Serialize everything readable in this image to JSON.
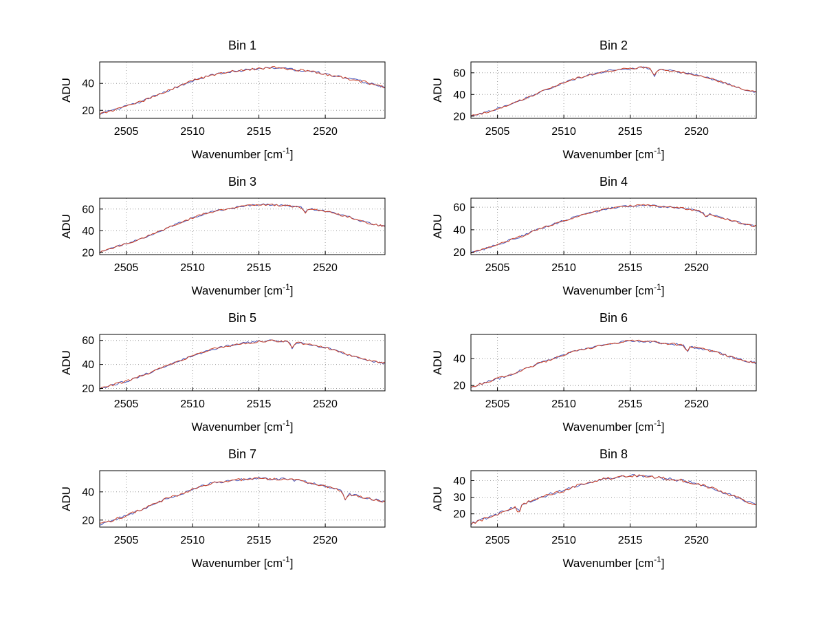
{
  "figure": {
    "background": "#ffffff",
    "ylabel": "ADU",
    "xlabel_prefix": "Wavenumber [cm",
    "xlabel_sup": "-1",
    "xlabel_suffix": "]",
    "x_lim": [
      2503,
      2524.5
    ],
    "x_ticks": [
      2505,
      2510,
      2515,
      2520
    ],
    "x_control": [
      2503,
      2504,
      2505,
      2506,
      2507,
      2508,
      2509,
      2510,
      2511,
      2512,
      2513,
      2514,
      2515,
      2516,
      2517,
      2518,
      2519,
      2520,
      2521,
      2522,
      2523,
      2524,
      2524.5
    ],
    "line_colors": [
      "#4455bb",
      "#cc4125"
    ],
    "grid_color": "#999999",
    "axis_color": "#000000",
    "noise_amp": 0.9,
    "grid_style": "dotted",
    "legend": "none"
  },
  "chart_data": [
    {
      "type": "line",
      "title": "Bin 1",
      "xlabel": "Wavenumber [cm^-1]",
      "ylabel": "ADU",
      "y_ticks": [
        20,
        40
      ],
      "y_lim": [
        14,
        56
      ],
      "seed": 1,
      "dips": [],
      "values": [
        17,
        20,
        23,
        26,
        30,
        34,
        38,
        42,
        45,
        47,
        49,
        50,
        51,
        52,
        51,
        50,
        49,
        47,
        45,
        43,
        41,
        38,
        37
      ]
    },
    {
      "type": "line",
      "title": "Bin 2",
      "xlabel": "Wavenumber [cm^-1]",
      "ylabel": "ADU",
      "y_ticks": [
        20,
        40,
        60
      ],
      "y_lim": [
        18,
        70
      ],
      "seed": 2,
      "dips": [
        [
          2516.8,
          7
        ]
      ],
      "values": [
        20,
        23,
        27,
        31,
        36,
        41,
        46,
        51,
        55,
        58,
        61,
        63,
        64,
        65,
        63,
        62,
        60,
        58,
        55,
        51,
        47,
        43,
        42
      ]
    },
    {
      "type": "line",
      "title": "Bin 3",
      "xlabel": "Wavenumber [cm^-1]",
      "ylabel": "ADU",
      "y_ticks": [
        20,
        40,
        60
      ],
      "y_lim": [
        18,
        70
      ],
      "seed": 3,
      "dips": [
        [
          2518.5,
          4
        ]
      ],
      "values": [
        20,
        24,
        28,
        32,
        37,
        42,
        47,
        52,
        56,
        59,
        61,
        63,
        64,
        64,
        63,
        62,
        60,
        58,
        55,
        52,
        48,
        45,
        44
      ]
    },
    {
      "type": "line",
      "title": "Bin 4",
      "xlabel": "Wavenumber [cm^-1]",
      "ylabel": "ADU",
      "y_ticks": [
        20,
        40,
        60
      ],
      "y_lim": [
        18,
        68
      ],
      "seed": 4,
      "dips": [
        [
          2520.7,
          4
        ]
      ],
      "values": [
        20,
        23,
        27,
        31,
        35,
        40,
        44,
        48,
        52,
        55,
        58,
        60,
        61,
        62,
        61,
        60,
        59,
        57,
        54,
        50,
        47,
        44,
        43
      ]
    },
    {
      "type": "line",
      "title": "Bin 5",
      "xlabel": "Wavenumber [cm^-1]",
      "ylabel": "ADU",
      "y_ticks": [
        20,
        40,
        60
      ],
      "y_lim": [
        18,
        65
      ],
      "seed": 5,
      "dips": [
        [
          2517.5,
          5
        ]
      ],
      "values": [
        20,
        23,
        26,
        30,
        34,
        39,
        43,
        47,
        51,
        54,
        56,
        58,
        59,
        60,
        59,
        58,
        56,
        54,
        51,
        47,
        44,
        42,
        41
      ]
    },
    {
      "type": "line",
      "title": "Bin 6",
      "xlabel": "Wavenumber [cm^-1]",
      "ylabel": "ADU",
      "y_ticks": [
        20,
        40
      ],
      "y_lim": [
        16,
        58
      ],
      "seed": 6,
      "dips": [
        [
          2519.3,
          4
        ]
      ],
      "values": [
        19,
        22,
        25,
        28,
        32,
        36,
        39,
        43,
        46,
        48,
        50,
        52,
        53,
        53,
        52,
        51,
        50,
        48,
        46,
        43,
        40,
        38,
        37
      ]
    },
    {
      "type": "line",
      "title": "Bin 7",
      "xlabel": "Wavenumber [cm^-1]",
      "ylabel": "ADU",
      "y_ticks": [
        20,
        40
      ],
      "y_lim": [
        15,
        55
      ],
      "seed": 7,
      "dips": [
        [
          2521.5,
          5
        ]
      ],
      "values": [
        17,
        20,
        23,
        27,
        31,
        35,
        38,
        42,
        45,
        47,
        48,
        49,
        50,
        49,
        49,
        48,
        46,
        44,
        41,
        38,
        36,
        34,
        33
      ]
    },
    {
      "type": "line",
      "title": "Bin 8",
      "xlabel": "Wavenumber [cm^-1]",
      "ylabel": "ADU",
      "y_ticks": [
        20,
        30,
        40
      ],
      "y_lim": [
        12,
        46
      ],
      "seed": 8,
      "dips": [
        [
          2506.6,
          4
        ]
      ],
      "values": [
        14,
        17,
        20,
        23,
        26,
        29,
        32,
        34,
        37,
        39,
        41,
        42,
        43,
        43,
        42,
        41,
        40,
        38,
        36,
        33,
        30,
        27,
        26
      ]
    }
  ]
}
